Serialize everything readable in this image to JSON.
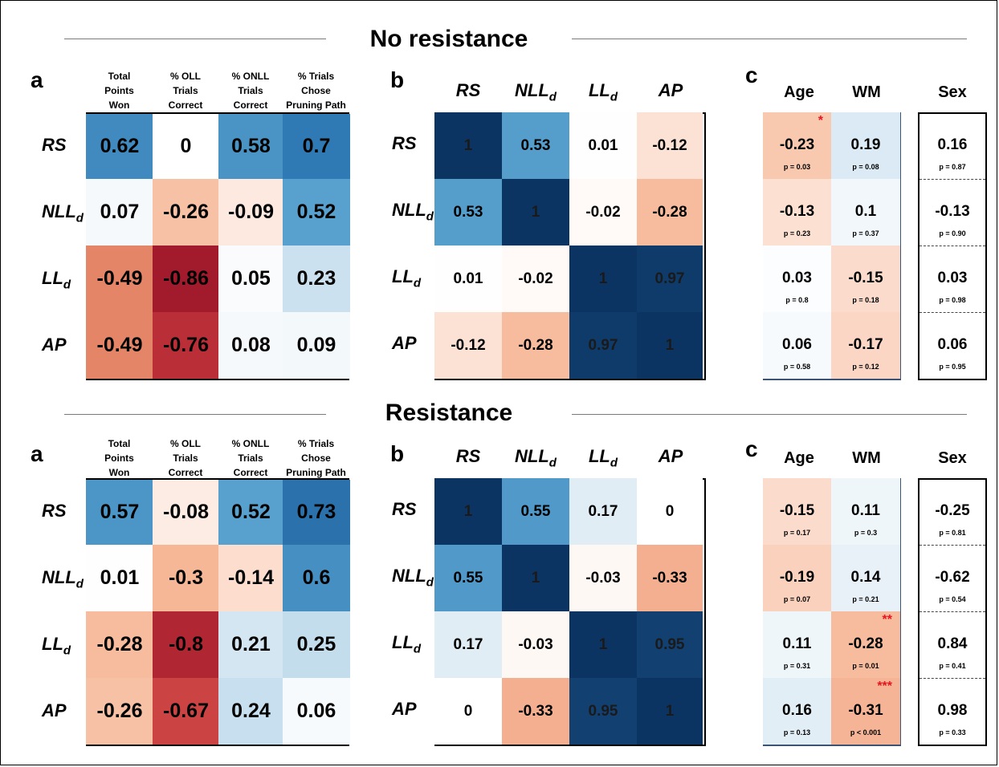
{
  "sections": [
    {
      "title": "No resistance",
      "panel_a": {
        "letter": "a",
        "columns": [
          "Total\nPoints\nWon",
          "% OLL\nTrials\nCorrect",
          "% ONLL\nTrials\nCorrect",
          "% Trials\nChose\nPruning Path"
        ],
        "rows": [
          "RS",
          "NLLd",
          "LLd",
          "AP"
        ],
        "values": [
          [
            0.62,
            0,
            0.58,
            0.7
          ],
          [
            0.07,
            -0.26,
            -0.09,
            0.52
          ],
          [
            -0.49,
            -0.86,
            0.05,
            0.23
          ],
          [
            -0.49,
            -0.76,
            0.08,
            0.09
          ]
        ]
      },
      "panel_b": {
        "letter": "b",
        "columns": [
          "RS",
          "NLLd",
          "LLd",
          "AP"
        ],
        "rows": [
          "RS",
          "NLLd",
          "LLd",
          "AP"
        ],
        "values": [
          [
            1,
            0.53,
            0.01,
            -0.12
          ],
          [
            0.53,
            1,
            -0.02,
            -0.28
          ],
          [
            0.01,
            -0.02,
            1,
            0.97
          ],
          [
            -0.12,
            -0.28,
            0.97,
            1
          ]
        ]
      },
      "panel_c": {
        "letter": "c",
        "columns": [
          "Age",
          "WM",
          "Sex"
        ],
        "age": [
          {
            "r": -0.23,
            "p": "p = 0.03",
            "stars": "*"
          },
          {
            "r": -0.13,
            "p": "p = 0.23",
            "stars": ""
          },
          {
            "r": 0.03,
            "p": "p = 0.8",
            "stars": ""
          },
          {
            "r": 0.06,
            "p": "p = 0.58",
            "stars": ""
          }
        ],
        "wm": [
          {
            "r": 0.19,
            "p": "p = 0.08",
            "stars": ""
          },
          {
            "r": 0.1,
            "p": "p = 0.37",
            "stars": ""
          },
          {
            "r": -0.15,
            "p": "p = 0.18",
            "stars": ""
          },
          {
            "r": -0.17,
            "p": "p = 0.12",
            "stars": ""
          }
        ],
        "sex": [
          {
            "r": 0.16,
            "p": "p = 0.87"
          },
          {
            "r": -0.13,
            "p": "p = 0.90"
          },
          {
            "r": 0.03,
            "p": "p = 0.98"
          },
          {
            "r": 0.06,
            "p": "p = 0.95"
          }
        ]
      }
    },
    {
      "title": "Resistance",
      "panel_a": {
        "letter": "a",
        "columns": [
          "Total\nPoints\nWon",
          "% OLL\nTrials\nCorrect",
          "% ONLL\nTrials\nCorrect",
          "% Trials\nChose\nPruning Path"
        ],
        "rows": [
          "RS",
          "NLLd",
          "LLd",
          "AP"
        ],
        "values": [
          [
            0.57,
            -0.08,
            0.52,
            0.73
          ],
          [
            0.01,
            -0.3,
            -0.14,
            0.6
          ],
          [
            -0.28,
            -0.8,
            0.21,
            0.25
          ],
          [
            -0.26,
            -0.67,
            0.24,
            0.06
          ]
        ]
      },
      "panel_b": {
        "letter": "b",
        "columns": [
          "RS",
          "NLLd",
          "LLd",
          "AP"
        ],
        "rows": [
          "RS",
          "NLLd",
          "LLd",
          "AP"
        ],
        "values": [
          [
            1,
            0.55,
            0.17,
            0
          ],
          [
            0.55,
            1,
            -0.03,
            -0.33
          ],
          [
            0.17,
            -0.03,
            1,
            0.95
          ],
          [
            0,
            -0.33,
            0.95,
            1
          ]
        ]
      },
      "panel_c": {
        "letter": "c",
        "columns": [
          "Age",
          "WM",
          "Sex"
        ],
        "age": [
          {
            "r": -0.15,
            "p": "p = 0.17",
            "stars": ""
          },
          {
            "r": -0.19,
            "p": "p = 0.07",
            "stars": ""
          },
          {
            "r": 0.11,
            "p": "p = 0.31",
            "stars": ""
          },
          {
            "r": 0.16,
            "p": "p = 0.13",
            "stars": ""
          }
        ],
        "wm": [
          {
            "r": 0.11,
            "p": "p = 0.3",
            "stars": ""
          },
          {
            "r": 0.14,
            "p": "p = 0.21",
            "stars": ""
          },
          {
            "r": -0.28,
            "p": "p = 0.01",
            "stars": "**"
          },
          {
            "r": -0.31,
            "p": "p < 0.001",
            "stars": "***"
          }
        ],
        "sex": [
          {
            "r": -0.25,
            "p": "p = 0.81"
          },
          {
            "r": -0.62,
            "p": "p = 0.54"
          },
          {
            "r": 0.84,
            "p": "p = 0.41"
          },
          {
            "r": 0.98,
            "p": "p = 0.33"
          }
        ]
      }
    }
  ],
  "chart_data": {
    "type": "heatmap",
    "colormap": "diverging red-white-blue",
    "color_range": [
      -1,
      1
    ],
    "colors": {
      "negative": "#67001f",
      "neutral": "#ffffff",
      "positive": "#053061"
    }
  }
}
